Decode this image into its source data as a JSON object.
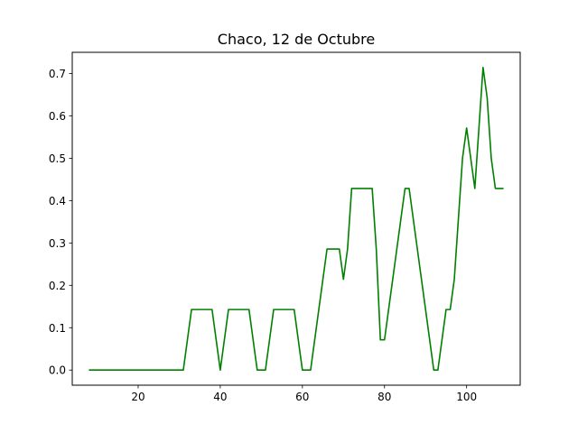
{
  "chart_data": {
    "type": "line",
    "title": "Chaco, 12 de Octubre",
    "xlabel": "",
    "ylabel": "",
    "xlim": [
      3.95,
      113.05
    ],
    "ylim": [
      -0.0357,
      0.75
    ],
    "x_ticks": [
      20,
      40,
      60,
      80,
      100
    ],
    "y_ticks": [
      0.0,
      0.1,
      0.2,
      0.3,
      0.4,
      0.5,
      0.6,
      0.7
    ],
    "x_tick_labels": [
      "20",
      "40",
      "60",
      "80",
      "100"
    ],
    "y_tick_labels": [
      "0.0",
      "0.1",
      "0.2",
      "0.3",
      "0.4",
      "0.5",
      "0.6",
      "0.7"
    ],
    "grid": false,
    "legend": false,
    "series": [
      {
        "color": "#008000",
        "x": [
          8,
          9,
          10,
          11,
          12,
          13,
          14,
          15,
          16,
          17,
          18,
          19,
          20,
          21,
          22,
          23,
          24,
          25,
          26,
          27,
          28,
          29,
          30,
          31,
          32,
          33,
          34,
          35,
          36,
          37,
          38,
          39,
          40,
          41,
          42,
          43,
          44,
          45,
          46,
          47,
          48,
          49,
          50,
          51,
          52,
          53,
          54,
          55,
          56,
          57,
          58,
          59,
          60,
          61,
          62,
          63,
          64,
          65,
          66,
          67,
          68,
          69,
          70,
          71,
          72,
          73,
          74,
          75,
          76,
          77,
          78,
          79,
          80,
          81,
          82,
          83,
          84,
          85,
          86,
          87,
          88,
          89,
          90,
          91,
          92,
          93,
          94,
          95,
          96,
          97,
          98,
          99,
          100,
          101,
          102,
          103,
          104,
          105,
          106,
          107,
          108,
          109
        ],
        "y": [
          0,
          0,
          0,
          0,
          0,
          0,
          0,
          0,
          0,
          0,
          0,
          0,
          0,
          0,
          0,
          0,
          0,
          0,
          0,
          0,
          0,
          0,
          0,
          0,
          0.0714,
          0.1429,
          0.1429,
          0.1429,
          0.1429,
          0.1429,
          0.1429,
          0.0714,
          0,
          0.0714,
          0.1429,
          0.1429,
          0.1429,
          0.1429,
          0.1429,
          0.1429,
          0.0714,
          0,
          0,
          0,
          0.0714,
          0.1429,
          0.1429,
          0.1429,
          0.1429,
          0.1429,
          0.1429,
          0.0714,
          0,
          0,
          0,
          0.0714,
          0.1429,
          0.2143,
          0.2857,
          0.2857,
          0.2857,
          0.2857,
          0.2143,
          0.2857,
          0.4286,
          0.4286,
          0.4286,
          0.4286,
          0.4286,
          0.4286,
          0.2857,
          0.0714,
          0.0714,
          0.1429,
          0.2143,
          0.2857,
          0.3571,
          0.4286,
          0.4286,
          0.3571,
          0.2857,
          0.2143,
          0.1429,
          0.0714,
          0,
          0,
          0.0714,
          0.1429,
          0.1429,
          0.2143,
          0.3571,
          0.5,
          0.5714,
          0.5,
          0.4286,
          0.5714,
          0.7143,
          0.6429,
          0.5,
          0.4286,
          0.4286,
          0.4286
        ]
      }
    ]
  }
}
